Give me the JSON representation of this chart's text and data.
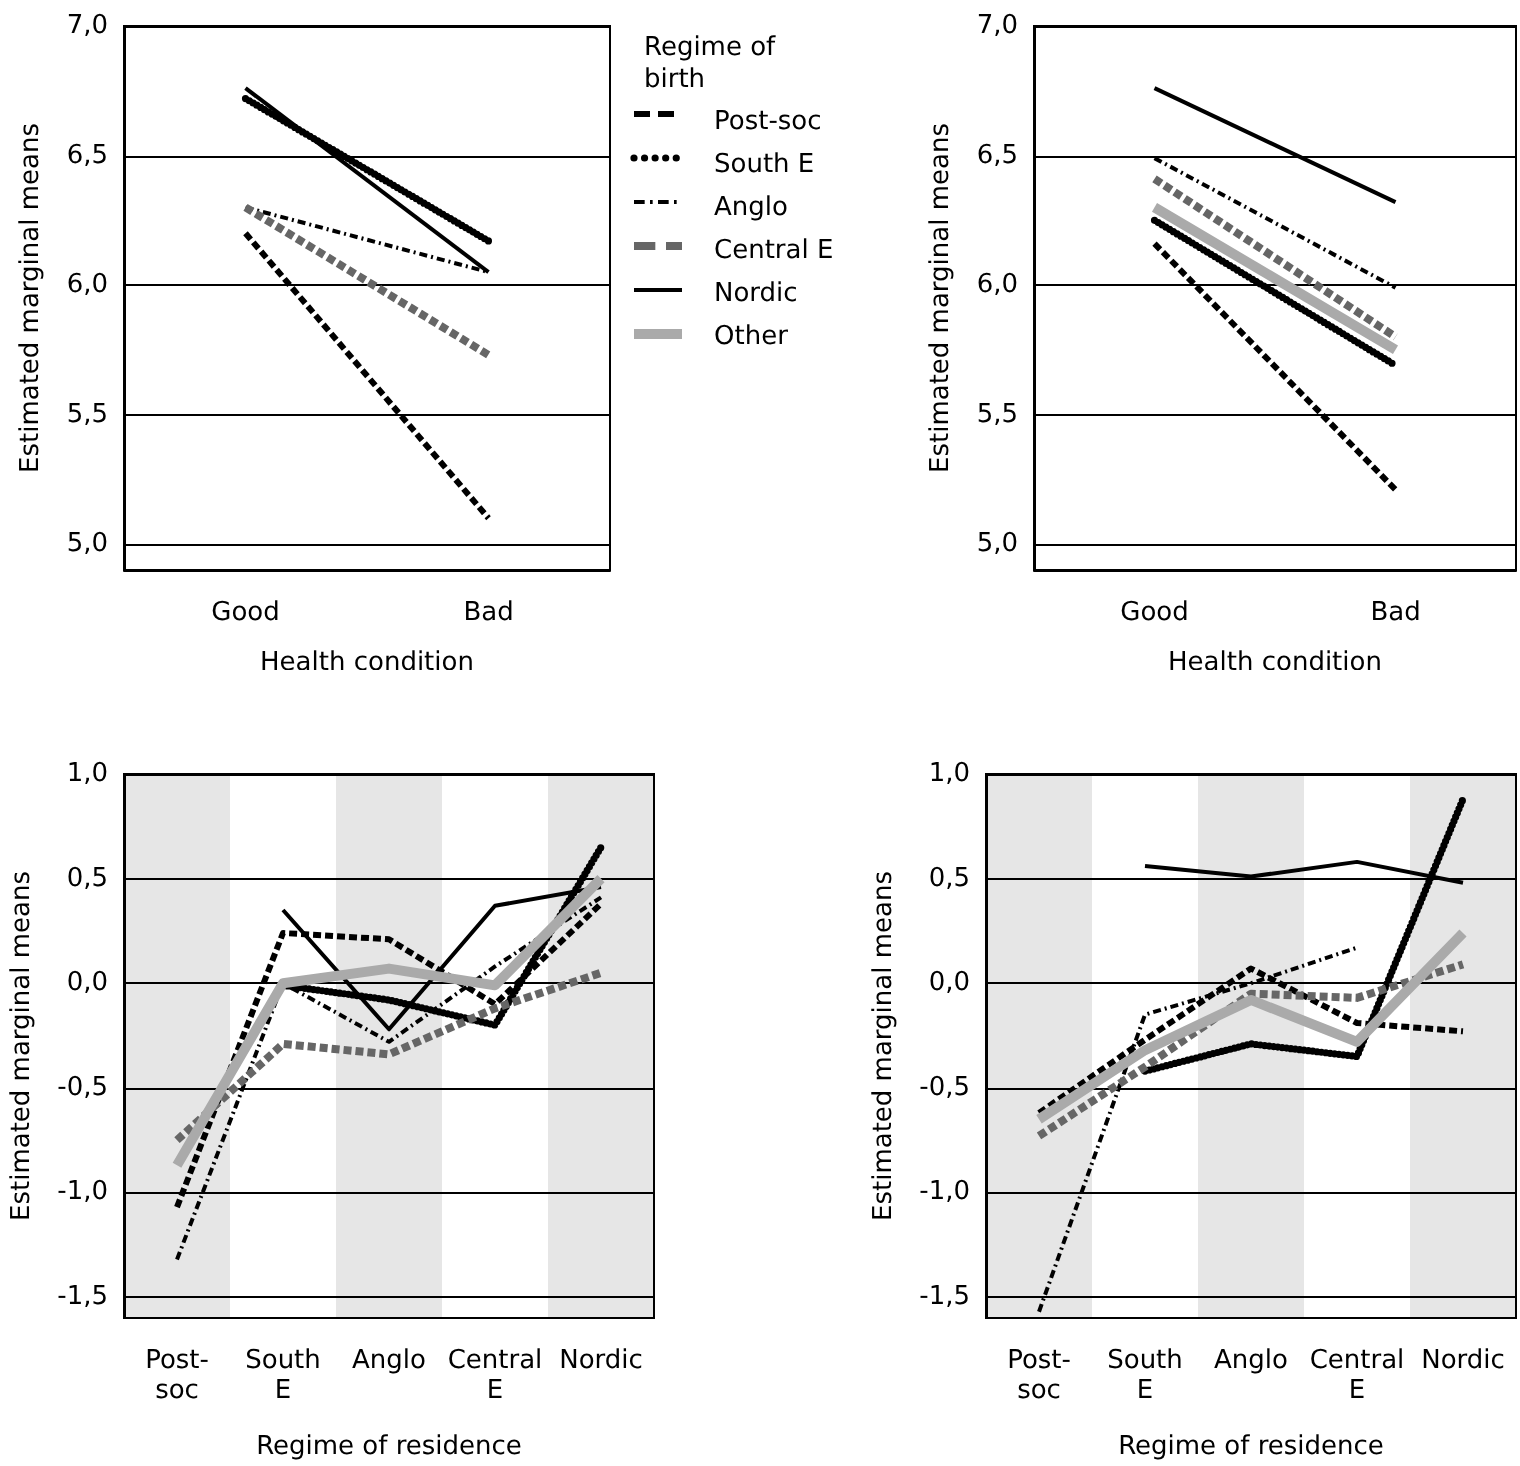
{
  "chart_data": [
    {
      "type": "line",
      "categories": [
        "Good",
        "Bad"
      ],
      "xlabel": "Health condition",
      "ylabel": "Estimated marginal means",
      "ylim": [
        4.9,
        7.0
      ],
      "yticks": [
        {
          "value": 5,
          "label": "5,0"
        },
        {
          "value": 5.5,
          "label": "5,5"
        },
        {
          "value": 6,
          "label": "6,0"
        },
        {
          "value": 6.5,
          "label": "6,5"
        },
        {
          "value": 7,
          "label": "7,0"
        }
      ],
      "grid": "y",
      "legend": "right",
      "legend_title": "Regime of birth",
      "marker": "none",
      "series": [
        {
          "name": "Post-soc",
          "color": "#000000",
          "line_style": "dashed",
          "values": [
            6.2,
            5.1
          ]
        },
        {
          "name": "South E",
          "color": "#000000",
          "line_style": "dotted",
          "values": [
            6.72,
            6.17
          ]
        },
        {
          "name": "Anglo",
          "color": "#000000",
          "line_style": "dashdot",
          "values": [
            6.3,
            6.05
          ]
        },
        {
          "name": "Central E",
          "color": "#666666",
          "line_style": "dashed",
          "values": [
            6.3,
            5.73
          ]
        },
        {
          "name": "Nordic",
          "color": "#000000",
          "line_style": "solid",
          "values": [
            6.76,
            6.05
          ]
        },
        {
          "name": "Other",
          "color": "#aaaaaa",
          "line_style": "solid",
          "values": [
            null,
            null
          ]
        }
      ]
    },
    {
      "type": "line",
      "categories": [
        "Good",
        "Bad"
      ],
      "xlabel": "Health condition",
      "ylabel": "Estimated marginal means",
      "ylim": [
        4.9,
        7.0
      ],
      "yticks": [
        {
          "value": 5,
          "label": "5,0"
        },
        {
          "value": 5.5,
          "label": "5,5"
        },
        {
          "value": 6,
          "label": "6,0"
        },
        {
          "value": 6.5,
          "label": "6,5"
        },
        {
          "value": 7,
          "label": "7,0"
        }
      ],
      "grid": "y",
      "marker": "none",
      "series": [
        {
          "color": "#000000",
          "line_style": "dashed",
          "values": [
            6.16,
            5.21
          ]
        },
        {
          "color": "#000000",
          "line_style": "dotted",
          "values": [
            6.25,
            5.69
          ]
        },
        {
          "color": "#000000",
          "line_style": "dashdot",
          "values": [
            6.49,
            5.99
          ]
        },
        {
          "color": "#666666",
          "line_style": "dashed",
          "values": [
            6.41,
            5.8
          ]
        },
        {
          "color": "#000000",
          "line_style": "solid",
          "values": [
            6.76,
            6.32
          ]
        },
        {
          "color": "#aaaaaa",
          "line_style": "solid",
          "values": [
            6.3,
            5.75
          ]
        }
      ]
    },
    {
      "type": "line",
      "categories": [
        "Post-soc",
        "South E",
        "Anglo",
        "Central E",
        "Nordic"
      ],
      "xlabel": "Regime of residence",
      "ylabel": "Estimated marginal means",
      "ylim": [
        -1.6,
        1.0
      ],
      "yticks": [
        {
          "value": -1.5,
          "label": "-1,5"
        },
        {
          "value": -1,
          "label": "-1,0"
        },
        {
          "value": -0.5,
          "label": "-0,5"
        },
        {
          "value": 0,
          "label": "0,0"
        },
        {
          "value": 0.5,
          "label": "0,5"
        },
        {
          "value": 1,
          "label": "1,0"
        }
      ],
      "grid": "y",
      "marker": "none",
      "bands": [
        {
          "axis": "x",
          "from": "Post-soc",
          "to": "Post-soc",
          "color": "#e6e6e6"
        },
        {
          "axis": "x",
          "from": "Anglo",
          "to": "Anglo",
          "color": "#e6e6e6"
        },
        {
          "axis": "x",
          "from": "Nordic",
          "to": "Nordic",
          "color": "#e6e6e6"
        }
      ],
      "series": [
        {
          "color": "#000000",
          "line_style": "dashed",
          "values": [
            -1.07,
            0.24,
            0.21,
            -0.1,
            0.38
          ]
        },
        {
          "color": "#000000",
          "line_style": "dotted",
          "values": [
            null,
            -0.01,
            -0.08,
            -0.2,
            0.65
          ]
        },
        {
          "color": "#000000",
          "line_style": "dashdot",
          "values": [
            -1.32,
            0.0,
            -0.28,
            0.08,
            0.41
          ]
        },
        {
          "color": "#666666",
          "line_style": "dashed",
          "values": [
            -0.75,
            -0.29,
            -0.34,
            -0.12,
            0.05
          ]
        },
        {
          "color": "#000000",
          "line_style": "solid",
          "values": [
            null,
            0.35,
            -0.22,
            0.37,
            0.46
          ]
        },
        {
          "color": "#aaaaaa",
          "line_style": "solid",
          "values": [
            -0.87,
            0.0,
            0.07,
            -0.01,
            0.5
          ]
        }
      ]
    },
    {
      "type": "line",
      "categories": [
        "Post-soc",
        "South E",
        "Anglo",
        "Central E",
        "Nordic"
      ],
      "xlabel": "Regime of residence",
      "ylabel": "Estimated marginal means",
      "ylim": [
        -1.6,
        1.0
      ],
      "yticks": [
        {
          "value": -1.5,
          "label": "-1,5"
        },
        {
          "value": -1,
          "label": "-1,0"
        },
        {
          "value": -0.5,
          "label": "-0,5"
        },
        {
          "value": 0,
          "label": "0,0"
        },
        {
          "value": 0.5,
          "label": "0,5"
        },
        {
          "value": 1,
          "label": "1,0"
        }
      ],
      "grid": "y",
      "marker": "none",
      "bands": [
        {
          "axis": "x",
          "from": "Post-soc",
          "to": "Post-soc",
          "color": "#e6e6e6"
        },
        {
          "axis": "x",
          "from": "Anglo",
          "to": "Anglo",
          "color": "#e6e6e6"
        },
        {
          "axis": "x",
          "from": "Nordic",
          "to": "Nordic",
          "color": "#e6e6e6"
        }
      ],
      "series": [
        {
          "color": "#000000",
          "line_style": "dashed",
          "values": [
            -0.62,
            -0.27,
            0.07,
            -0.19,
            -0.23
          ]
        },
        {
          "color": "#000000",
          "line_style": "dotted",
          "values": [
            null,
            -0.42,
            -0.29,
            -0.35,
            0.88
          ]
        },
        {
          "color": "#000000",
          "line_style": "dashdot",
          "values": [
            -1.57,
            -0.15,
            0.0,
            0.17,
            null
          ]
        },
        {
          "color": "#666666",
          "line_style": "dashed",
          "values": [
            -0.73,
            -0.4,
            -0.05,
            -0.07,
            0.09
          ]
        },
        {
          "color": "#000000",
          "line_style": "solid",
          "values": [
            null,
            0.56,
            0.51,
            0.58,
            0.48
          ]
        },
        {
          "color": "#aaaaaa",
          "line_style": "solid",
          "values": [
            -0.65,
            -0.32,
            -0.08,
            -0.28,
            0.24
          ]
        }
      ]
    }
  ]
}
